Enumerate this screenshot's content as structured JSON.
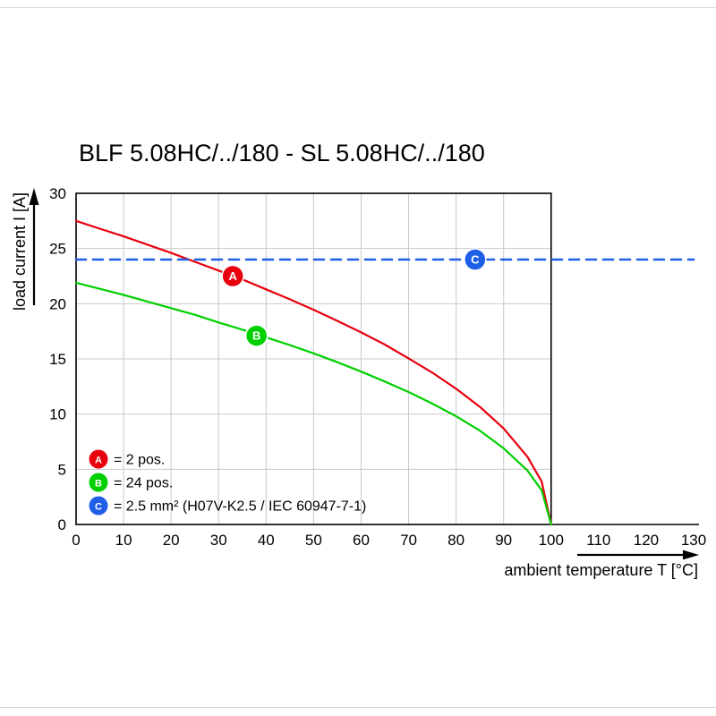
{
  "chart_data": {
    "type": "line",
    "title": "BLF 5.08HC/../180 - SL 5.08HC/../180",
    "xlabel": "ambient temperature T [°C]",
    "ylabel": "load current I [A]",
    "xlim": [
      0,
      130
    ],
    "ylim": [
      0,
      30
    ],
    "x_ticks": [
      0,
      10,
      20,
      30,
      40,
      50,
      60,
      70,
      80,
      90,
      100,
      110,
      120,
      130
    ],
    "y_ticks": [
      0,
      5,
      10,
      15,
      20,
      25,
      30
    ],
    "grid": {
      "x_step": 10,
      "y_step": 5,
      "x_max": 100,
      "color": "#c9c9c9"
    },
    "legend_position": "bottom-left-inside",
    "series": [
      {
        "id": "A",
        "label": "= 2 pos.",
        "color": "#e8000e",
        "style": "solid",
        "stroke_width": 2.2,
        "points": [
          [
            0,
            27.5
          ],
          [
            5,
            26.8
          ],
          [
            10,
            26.1
          ],
          [
            15,
            25.35
          ],
          [
            20,
            24.6
          ],
          [
            25,
            23.8
          ],
          [
            30,
            23.0
          ],
          [
            35,
            22.2
          ],
          [
            40,
            21.3
          ],
          [
            45,
            20.4
          ],
          [
            50,
            19.45
          ],
          [
            55,
            18.45
          ],
          [
            60,
            17.4
          ],
          [
            65,
            16.3
          ],
          [
            70,
            15.05
          ],
          [
            75,
            13.75
          ],
          [
            80,
            12.3
          ],
          [
            85,
            10.65
          ],
          [
            90,
            8.7
          ],
          [
            95,
            6.15
          ],
          [
            98,
            3.9
          ],
          [
            100,
            0
          ]
        ]
      },
      {
        "id": "B",
        "label": "= 24 pos.",
        "color": "#00d000",
        "style": "solid",
        "stroke_width": 2.2,
        "points": [
          [
            0,
            21.9
          ],
          [
            5,
            21.35
          ],
          [
            10,
            20.8
          ],
          [
            15,
            20.2
          ],
          [
            20,
            19.6
          ],
          [
            25,
            19.0
          ],
          [
            30,
            18.3
          ],
          [
            35,
            17.65
          ],
          [
            40,
            16.95
          ],
          [
            45,
            16.25
          ],
          [
            50,
            15.5
          ],
          [
            55,
            14.7
          ],
          [
            60,
            13.85
          ],
          [
            65,
            12.95
          ],
          [
            70,
            12.0
          ],
          [
            75,
            10.95
          ],
          [
            80,
            9.8
          ],
          [
            85,
            8.5
          ],
          [
            90,
            6.9
          ],
          [
            95,
            4.9
          ],
          [
            98,
            3.1
          ],
          [
            100,
            0
          ]
        ]
      },
      {
        "id": "C",
        "label": "= 2.5 mm² (H07V-K2.5 / IEC 60947-7-1)",
        "color": "#1f5fe8",
        "style": "dashed",
        "stroke_width": 2.6,
        "points": [
          [
            0,
            24
          ],
          [
            130,
            24
          ]
        ]
      }
    ],
    "markers": [
      {
        "id": "A",
        "x": 33,
        "y": 22.5,
        "color": "#e8000e"
      },
      {
        "id": "B",
        "x": 38,
        "y": 17.1,
        "color": "#00d000"
      },
      {
        "id": "C",
        "x": 84,
        "y": 24,
        "color": "#1f5fe8"
      }
    ]
  }
}
